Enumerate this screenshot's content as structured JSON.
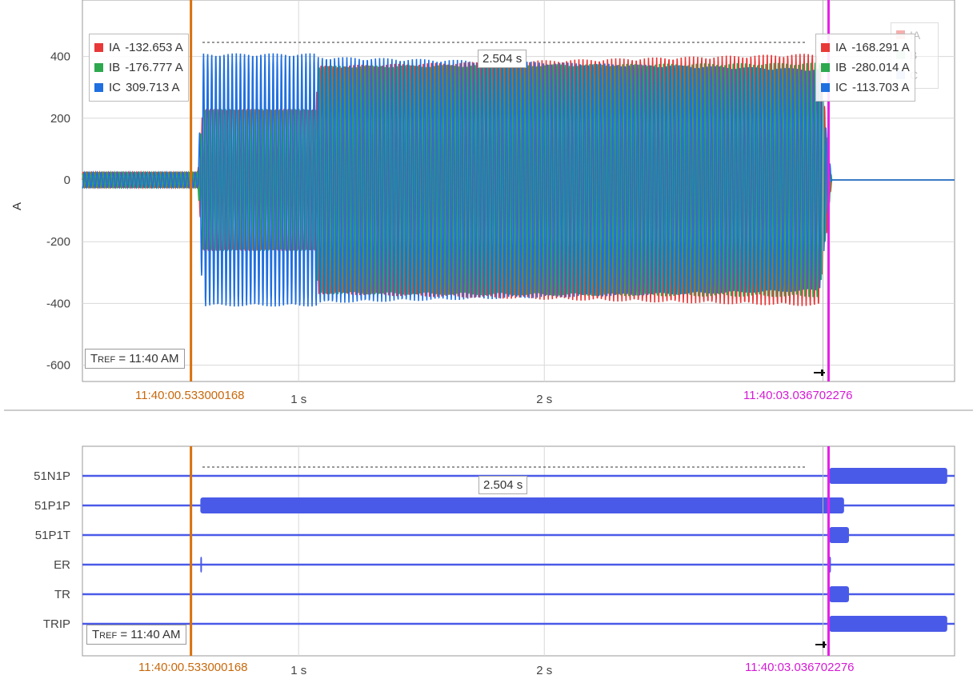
{
  "colors": {
    "IA": "#e83838",
    "IB": "#2ea84f",
    "IC": "#1f6fe0",
    "cursor_a": "#d9700a",
    "cursor_b": "#e81ee8",
    "digital": "#4a5ae8",
    "grid": "#d8d8d8"
  },
  "analog": {
    "y_axis_label": "A",
    "y_ticks": [
      "400",
      "200",
      "0",
      "-200",
      "-400",
      "-600"
    ],
    "x_ticks": [
      "1 s",
      "2 s"
    ],
    "legend_left": [
      {
        "name": "IA",
        "value": "-132.653 A"
      },
      {
        "name": "IB",
        "value": "-176.777 A"
      },
      {
        "name": "IC",
        "value": "309.713 A"
      }
    ],
    "legend_right": [
      {
        "name": "IA",
        "value": "-168.291 A"
      },
      {
        "name": "IB",
        "value": "-280.014 A"
      },
      {
        "name": "IC",
        "value": "-113.703 A"
      }
    ],
    "faded_legend": [
      "IA",
      "B",
      "C"
    ],
    "delta": "2.504 s",
    "tref_prefix": "T",
    "tref_small": "REF",
    "tref_rest": " = 11:40 AM"
  },
  "digital": {
    "channels": [
      "51N1P",
      "51P1P",
      "51P1T",
      "ER",
      "TR",
      "TRIP"
    ],
    "x_ticks": [
      "1 s",
      "2 s"
    ],
    "delta": "2.504 s",
    "tref_prefix": "T",
    "tref_small": "REF",
    "tref_rest": " = 11:40 AM"
  },
  "cursors": {
    "a_label": "11:40:00.533000168",
    "b_label": "11:40:03.036702276"
  },
  "chart_data": [
    {
      "type": "line",
      "ylabel": "A",
      "ylim": [
        -650,
        550
      ],
      "x_unit": "s",
      "x_range": [
        0,
        3.55
      ],
      "grid": true,
      "series": [
        {
          "name": "IA",
          "envelope": {
            "t": [
              0.0,
              0.47,
              0.49,
              0.95,
              0.96,
              3.0,
              3.05,
              3.55
            ],
            "amp": [
              25,
              25,
              230,
              230,
              370,
              410,
              0,
              0
            ]
          },
          "cursor_a_value": -132.653,
          "cursor_b_value": -168.291
        },
        {
          "name": "IB",
          "envelope": {
            "t": [
              0.0,
              0.47,
              0.49,
              0.95,
              0.96,
              3.0,
              3.05,
              3.55
            ],
            "amp": [
              25,
              25,
              230,
              230,
              370,
              380,
              0,
              0
            ]
          },
          "cursor_a_value": -176.777,
          "cursor_b_value": -280.014
        },
        {
          "name": "IC",
          "envelope": {
            "t": [
              0.0,
              0.47,
              0.49,
              0.95,
              0.96,
              3.0,
              3.05,
              3.55
            ],
            "amp": [
              25,
              25,
              410,
              410,
              400,
              360,
              0,
              0
            ]
          },
          "cursor_a_value": 309.713,
          "cursor_b_value": -113.703
        }
      ],
      "cursor_a_time": 0.533,
      "cursor_b_time": 3.037,
      "delta_t": 2.504
    },
    {
      "type": "digital",
      "x_unit": "s",
      "x_range": [
        0,
        3.55
      ],
      "channels": [
        {
          "name": "51N1P",
          "high": [
            [
              3.04,
              3.52
            ]
          ]
        },
        {
          "name": "51P1P",
          "high": [
            [
              0.48,
              3.1
            ]
          ]
        },
        {
          "name": "51P1T",
          "high": [
            [
              3.04,
              3.12
            ]
          ]
        },
        {
          "name": "ER",
          "high": [
            [
              0.48,
              0.485
            ],
            [
              3.04,
              3.045
            ]
          ]
        },
        {
          "name": "TR",
          "high": [
            [
              3.04,
              3.12
            ]
          ]
        },
        {
          "name": "TRIP",
          "high": [
            [
              3.04,
              3.52
            ]
          ]
        }
      ],
      "cursor_a_time": 0.533,
      "cursor_b_time": 3.037,
      "delta_t": 2.504
    }
  ]
}
